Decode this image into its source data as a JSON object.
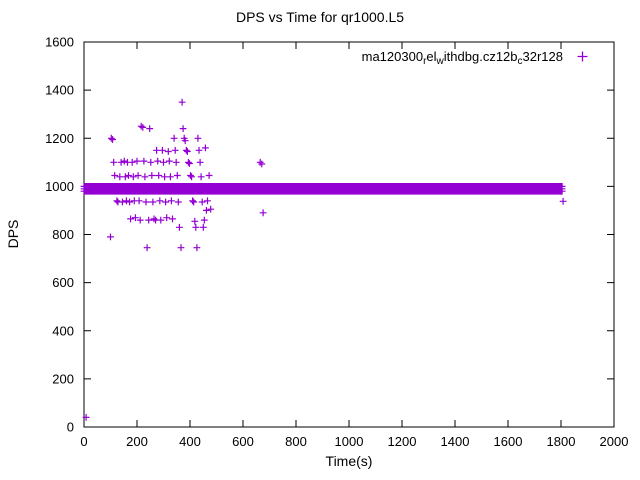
{
  "chart_data": {
    "type": "scatter",
    "title": "DPS vs Time for qr1000.L5",
    "xlabel": "Time(s)",
    "ylabel": "DPS",
    "xlim": [
      0,
      2000
    ],
    "ylim": [
      0,
      1600
    ],
    "xticks": [
      0,
      200,
      400,
      600,
      800,
      1000,
      1200,
      1400,
      1600,
      1800,
      2000
    ],
    "yticks": [
      0,
      200,
      400,
      600,
      800,
      1000,
      1200,
      1400,
      1600
    ],
    "grid": false,
    "marker": "plus",
    "marker_color": "#9400d3",
    "legend_position": "top-right-inside",
    "series": [
      {
        "name_plain": "ma120300_rel_withdbg.cz12b_c32r128",
        "name_segments": [
          {
            "t": "ma120300",
            "sub": false
          },
          {
            "t": "r",
            "sub": true
          },
          {
            "t": "el",
            "sub": false
          },
          {
            "t": "w",
            "sub": true
          },
          {
            "t": "ithdbg.cz12b",
            "sub": false
          },
          {
            "t": "c",
            "sub": true
          },
          {
            "t": "32r128",
            "sub": false
          }
        ],
        "dense_band": {
          "comment": "near-continuous band of plus markers",
          "x_start": 0,
          "x_end": 1805,
          "x_step": 4,
          "y_rows": [
            980,
            990,
            1000
          ]
        },
        "points": [
          [
            8,
            40
          ],
          [
            100,
            790
          ],
          [
            103,
            1200
          ],
          [
            108,
            1195
          ],
          [
            112,
            1100
          ],
          [
            116,
            1045
          ],
          [
            120,
            985
          ],
          [
            124,
            940
          ],
          [
            128,
            935
          ],
          [
            135,
            1040
          ],
          [
            140,
            1100
          ],
          [
            145,
            935
          ],
          [
            152,
            1105
          ],
          [
            156,
            1040
          ],
          [
            160,
            940
          ],
          [
            164,
            1100
          ],
          [
            168,
            1045
          ],
          [
            172,
            935
          ],
          [
            176,
            865
          ],
          [
            182,
            1100
          ],
          [
            186,
            1040
          ],
          [
            190,
            940
          ],
          [
            194,
            870
          ],
          [
            200,
            1105
          ],
          [
            204,
            1045
          ],
          [
            208,
            940
          ],
          [
            212,
            860
          ],
          [
            216,
            1250
          ],
          [
            222,
            1245
          ],
          [
            226,
            1105
          ],
          [
            230,
            1040
          ],
          [
            234,
            935
          ],
          [
            238,
            745
          ],
          [
            244,
            860
          ],
          [
            248,
            1240
          ],
          [
            252,
            1100
          ],
          [
            256,
            1045
          ],
          [
            260,
            935
          ],
          [
            264,
            865
          ],
          [
            270,
            860
          ],
          [
            274,
            1150
          ],
          [
            278,
            1105
          ],
          [
            282,
            1045
          ],
          [
            286,
            940
          ],
          [
            290,
            860
          ],
          [
            296,
            1150
          ],
          [
            300,
            1100
          ],
          [
            304,
            1040
          ],
          [
            308,
            935
          ],
          [
            312,
            870
          ],
          [
            318,
            1145
          ],
          [
            322,
            1105
          ],
          [
            326,
            1040
          ],
          [
            330,
            940
          ],
          [
            334,
            865
          ],
          [
            340,
            1200
          ],
          [
            344,
            1150
          ],
          [
            348,
            1100
          ],
          [
            352,
            1045
          ],
          [
            356,
            935
          ],
          [
            360,
            830
          ],
          [
            366,
            745
          ],
          [
            370,
            1350
          ],
          [
            374,
            1240
          ],
          [
            378,
            1200
          ],
          [
            382,
            1190
          ],
          [
            386,
            1150
          ],
          [
            390,
            1145
          ],
          [
            394,
            1100
          ],
          [
            398,
            1095
          ],
          [
            402,
            1045
          ],
          [
            406,
            1040
          ],
          [
            410,
            940
          ],
          [
            414,
            935
          ],
          [
            418,
            855
          ],
          [
            422,
            830
          ],
          [
            426,
            745
          ],
          [
            430,
            1200
          ],
          [
            434,
            1150
          ],
          [
            438,
            1100
          ],
          [
            442,
            1040
          ],
          [
            446,
            935
          ],
          [
            450,
            830
          ],
          [
            454,
            860
          ],
          [
            458,
            1160
          ],
          [
            462,
            900
          ],
          [
            466,
            940
          ],
          [
            472,
            1045
          ],
          [
            478,
            905
          ],
          [
            665,
            1100
          ],
          [
            671,
            1093
          ],
          [
            676,
            890
          ],
          [
            1808,
            938
          ]
        ]
      }
    ]
  }
}
